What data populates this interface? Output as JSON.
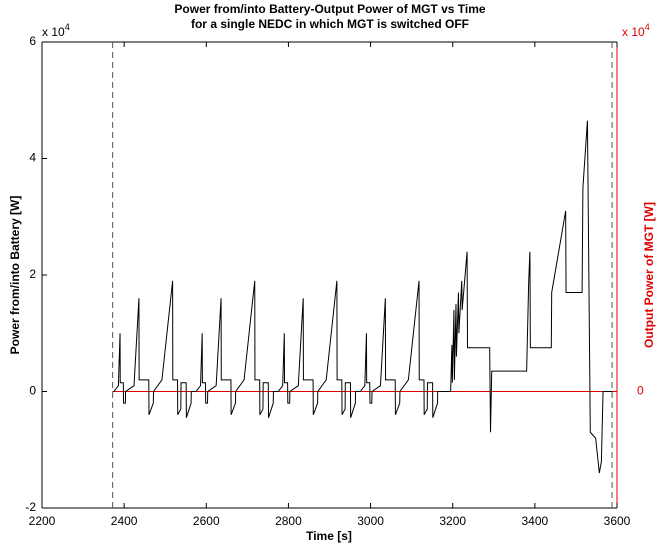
{
  "chart_data": {
    "type": "line",
    "title": [
      "Power from/into Battery-Output Power of MGT vs Time",
      "for a single NEDC in which MGT is switched OFF"
    ],
    "xlabel": "Time [s]",
    "ylabel": "Power from/into Battery [W]",
    "y2label": "Output Power of MGT [W]",
    "y_multiplier": {
      "base": "x 10",
      "exponent": "4"
    },
    "y2_multiplier": {
      "base": "x 10",
      "exponent": "4"
    },
    "xlim": [
      2200,
      3600
    ],
    "xticks": [
      2200,
      2400,
      2600,
      2800,
      3000,
      3200,
      3400,
      3600
    ],
    "ylim": [
      -2,
      6
    ],
    "yticks": [
      -2,
      0,
      2,
      4,
      6
    ],
    "y2lim": [
      -2,
      6
    ],
    "y2ticks": [
      0
    ],
    "y2color": "#e00000",
    "vlines": [
      2372,
      3588
    ],
    "series": [
      {
        "color": "#000000",
        "x": [
          2372,
          2375,
          2386,
          2390,
          2390.5,
          2398,
          2398.5,
          2403,
          2403.5,
          2424,
          2436,
          2436.5,
          2460,
          2460.5,
          2471,
          2471.5,
          2492,
          2518,
          2518.5,
          2530,
          2530.5,
          2538,
          2538.5,
          2551,
          2551.5,
          2563,
          2563.5,
          2575,
          2586,
          2590,
          2590.5,
          2598,
          2598.5,
          2603,
          2603.5,
          2624,
          2636,
          2636.5,
          2660,
          2660.5,
          2671,
          2671.5,
          2692,
          2718,
          2718.5,
          2730,
          2730.5,
          2738,
          2738.5,
          2751,
          2751.5,
          2763,
          2763.5,
          2775,
          2786,
          2790,
          2790.5,
          2798,
          2798.5,
          2803,
          2803.5,
          2824,
          2836,
          2836.5,
          2860,
          2860.5,
          2871,
          2871.5,
          2892,
          2918,
          2918.5,
          2930,
          2930.5,
          2938,
          2938.5,
          2951,
          2951.5,
          2963,
          2963.5,
          2975,
          2986,
          2990,
          2990.5,
          2998,
          2998.5,
          3003,
          3003.5,
          3024,
          3036,
          3036.5,
          3060,
          3060.5,
          3071,
          3071.5,
          3092,
          3118,
          3118.5,
          3130,
          3130.5,
          3138,
          3138.5,
          3151,
          3151.5,
          3163,
          3163.5,
          3195,
          3198,
          3199,
          3203,
          3204,
          3208,
          3209,
          3214,
          3215,
          3222,
          3223,
          3235,
          3236,
          3290,
          3292,
          3295,
          3380,
          3385,
          3388,
          3389,
          3440,
          3441,
          3475,
          3476,
          3515,
          3517,
          3528,
          3535,
          3548,
          3557,
          3562,
          3566,
          3588
        ],
        "values": [
          0,
          0,
          0.1,
          1.0,
          0.15,
          0.15,
          -0.2,
          -0.2,
          0,
          0.1,
          1.6,
          0.2,
          0.2,
          -0.4,
          -0.2,
          0,
          0.2,
          1.9,
          0.2,
          0.2,
          -0.4,
          -0.3,
          0.15,
          0.15,
          -0.45,
          -0.2,
          0,
          0,
          0.1,
          1.0,
          0.15,
          0.15,
          -0.2,
          -0.2,
          0,
          0.1,
          1.6,
          0.2,
          0.2,
          -0.4,
          -0.2,
          0,
          0.2,
          1.9,
          0.2,
          0.2,
          -0.4,
          -0.3,
          0.15,
          0.15,
          -0.45,
          -0.2,
          0,
          0,
          0.1,
          1.0,
          0.15,
          0.15,
          -0.2,
          -0.2,
          0,
          0.1,
          1.6,
          0.2,
          0.2,
          -0.4,
          -0.2,
          0,
          0.2,
          1.9,
          0.2,
          0.2,
          -0.4,
          -0.3,
          0.15,
          0.15,
          -0.45,
          -0.2,
          0,
          0,
          0.1,
          1.0,
          0.15,
          0.15,
          -0.2,
          -0.2,
          0,
          0.1,
          1.6,
          0.2,
          0.2,
          -0.4,
          -0.2,
          0,
          0.2,
          1.9,
          0.2,
          0.2,
          -0.4,
          -0.3,
          0.15,
          0.15,
          -0.45,
          -0.2,
          0,
          0,
          0.8,
          0.15,
          1.4,
          0.2,
          1.5,
          0.6,
          1.7,
          1.0,
          1.9,
          1.4,
          2.4,
          0.75,
          0.75,
          -0.7,
          0.35,
          0.35,
          1.9,
          2.4,
          0.75,
          0.75,
          1.7,
          3.1,
          1.7,
          1.7,
          3.5,
          4.65,
          -0.7,
          -0.8,
          -1.4,
          -1.2,
          0,
          0
        ]
      },
      {
        "color": "#e00000",
        "axis": "y2",
        "x": [
          2372,
          3588
        ],
        "values": [
          0,
          0
        ]
      }
    ]
  }
}
